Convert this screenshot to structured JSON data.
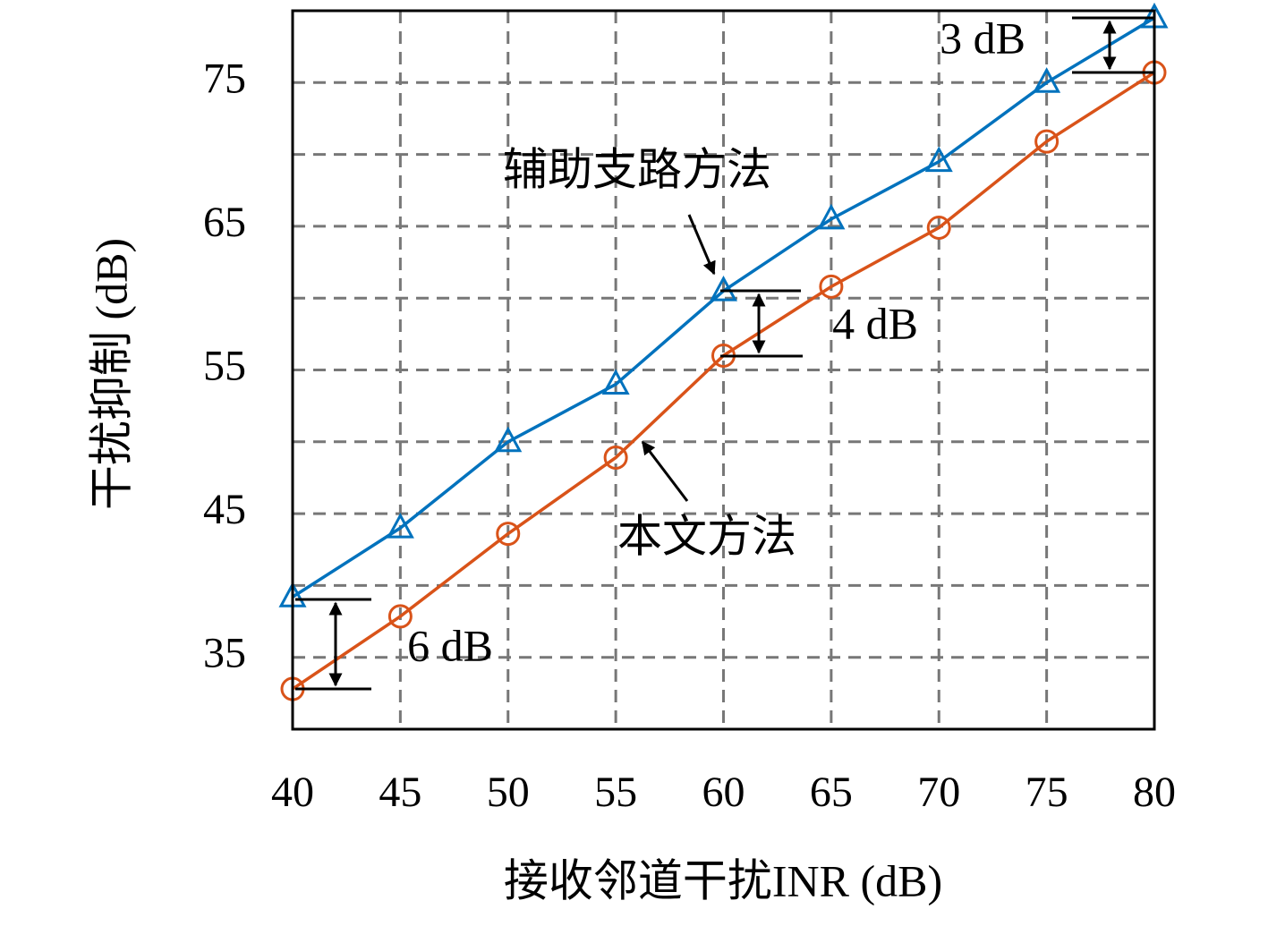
{
  "chart_data": {
    "type": "line",
    "xlabel": "接收邻道干扰INR (dB)",
    "ylabel": "干扰抑制 (dB)",
    "x": [
      40,
      45,
      50,
      55,
      60,
      65,
      70,
      75,
      80
    ],
    "series": [
      {
        "name": "辅助支路方法",
        "color": "#0072bd",
        "marker": "triangle",
        "values": [
          39.2,
          44.0,
          50.0,
          54.0,
          60.5,
          65.5,
          69.5,
          75.0,
          79.5
        ]
      },
      {
        "name": "本文方法",
        "color": "#d95319",
        "marker": "circle",
        "values": [
          32.8,
          37.85,
          43.6,
          48.9,
          56.0,
          60.8,
          64.9,
          70.9,
          75.7
        ]
      }
    ],
    "xlim": [
      40,
      80
    ],
    "xticks": [
      40,
      45,
      50,
      55,
      60,
      65,
      70,
      75,
      80
    ],
    "ylim": [
      30,
      80
    ],
    "yticks": [
      35,
      45,
      55,
      65,
      75
    ],
    "ygrid_unlabeled": [
      40,
      50,
      60,
      70
    ],
    "grid": true,
    "annotations": [
      "3 dB",
      "4 dB",
      "6 dB"
    ]
  }
}
